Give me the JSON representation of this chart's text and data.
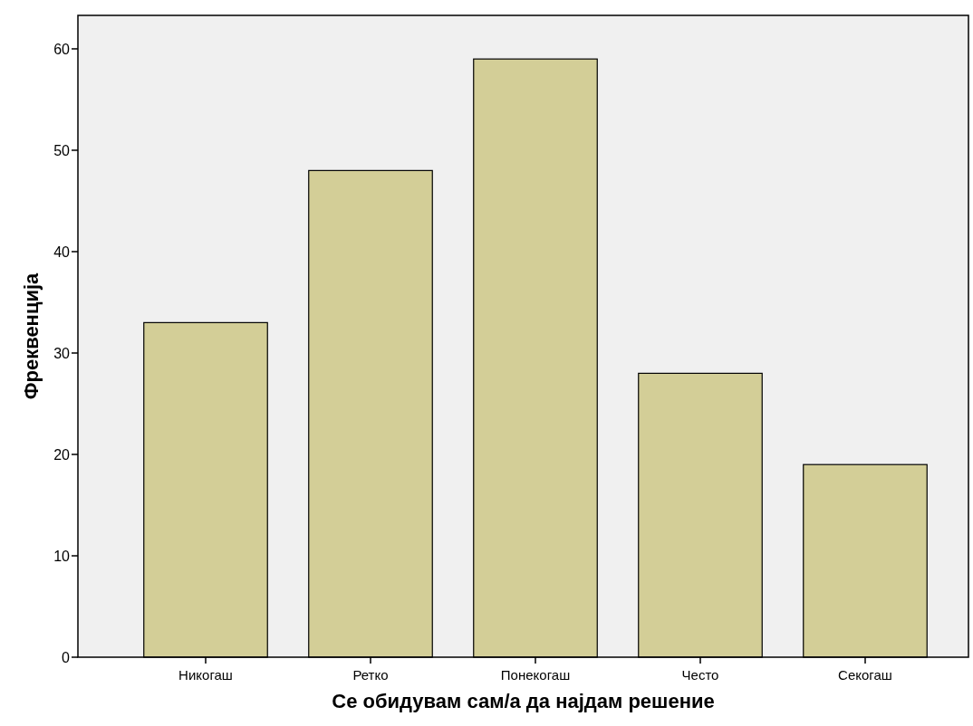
{
  "chart_data": {
    "type": "bar",
    "xlabel": "Се обидувам сам/а да најдам решение",
    "ylabel": "Фреквенција",
    "categories": [
      "Никогаш",
      "Ретко",
      "Понекогаш",
      "Често",
      "Секогаш"
    ],
    "values": [
      33,
      48,
      59,
      28,
      19
    ],
    "color": "#d3ce97",
    "ylim": [
      0,
      63.3
    ],
    "yticks": [
      0,
      10,
      20,
      30,
      40,
      50,
      60
    ],
    "grid": false
  }
}
